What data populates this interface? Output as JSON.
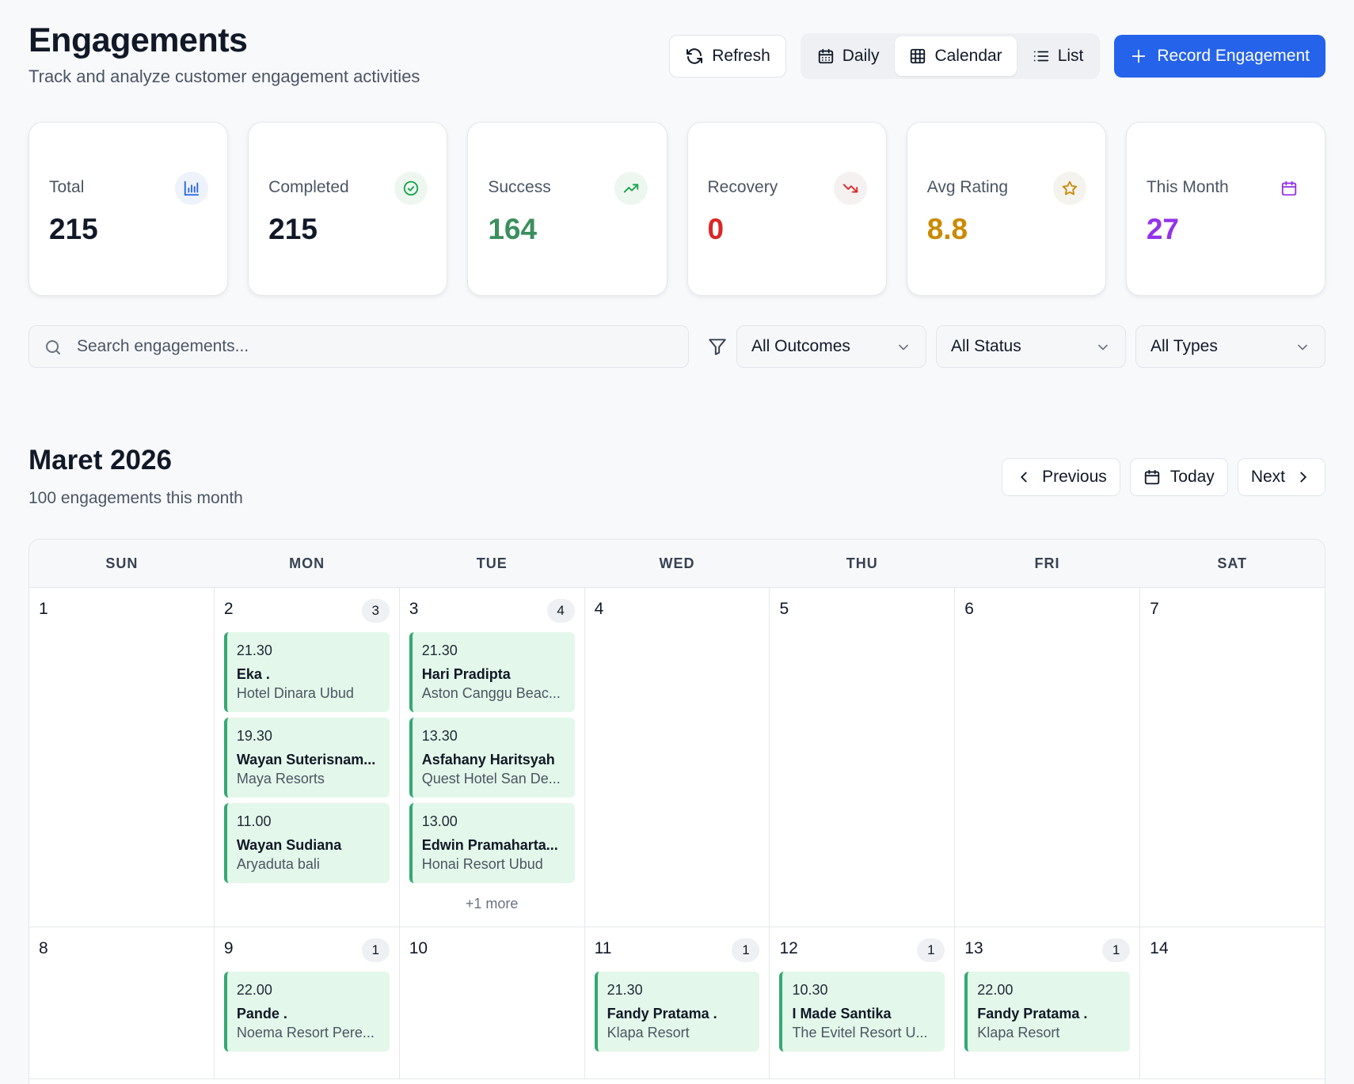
{
  "header": {
    "title": "Engagements",
    "subtitle": "Track and analyze customer engagement activities",
    "refresh_label": "Refresh",
    "views": [
      {
        "label": "Daily",
        "icon": "calendar-days-icon"
      },
      {
        "label": "Calendar",
        "icon": "grid-icon"
      },
      {
        "label": "List",
        "icon": "list-icon"
      }
    ],
    "active_view": "Calendar",
    "record_label": "Record Engagement"
  },
  "stats": [
    {
      "label": "Total",
      "value": "215",
      "icon": "bar-chart-icon",
      "color": "#111827",
      "icon_color": "#2563eb",
      "icon_bg": "#eef2fb"
    },
    {
      "label": "Completed",
      "value": "215",
      "icon": "check-circle-icon",
      "color": "#111827",
      "icon_color": "#16a34a",
      "icon_bg": "#edf7f0"
    },
    {
      "label": "Success",
      "value": "164",
      "icon": "trending-up-icon",
      "color": "#3b8f5e",
      "icon_color": "#16a34a",
      "icon_bg": "#edf7f0"
    },
    {
      "label": "Recovery",
      "value": "0",
      "icon": "trending-down-icon",
      "color": "#dc2626",
      "icon_color": "#dc2626",
      "icon_bg": "#f5f1f1"
    },
    {
      "label": "Avg Rating",
      "value": "8.8",
      "icon": "star-icon",
      "color": "#ca8a04",
      "icon_color": "#ca8a04",
      "icon_bg": "#f5f3ee"
    },
    {
      "label": "This Month",
      "value": "27",
      "icon": "calendar-icon",
      "color": "#9333ea",
      "icon_color": "#9333ea",
      "icon_bg": "#ffffff"
    }
  ],
  "filters": {
    "search_placeholder": "Search engagements...",
    "outcome": "All Outcomes",
    "status": "All Status",
    "type": "All Types"
  },
  "month": {
    "title": "Maret 2026",
    "subtitle": "100 engagements this month",
    "previous_label": "Previous",
    "today_label": "Today",
    "next_label": "Next"
  },
  "calendar": {
    "weekdays": [
      "SUN",
      "MON",
      "TUE",
      "WED",
      "THU",
      "FRI",
      "SAT"
    ],
    "weeks": [
      [
        {
          "day": "1",
          "count": "",
          "events": [],
          "more": ""
        },
        {
          "day": "2",
          "count": "3",
          "events": [
            {
              "time": "21.30",
              "name": "Eka .",
              "location": "Hotel Dinara Ubud"
            },
            {
              "time": "19.30",
              "name": "Wayan Suterisnam...",
              "location": "Maya Resorts"
            },
            {
              "time": "11.00",
              "name": "Wayan Sudiana",
              "location": "Aryaduta bali"
            }
          ],
          "more": ""
        },
        {
          "day": "3",
          "count": "4",
          "events": [
            {
              "time": "21.30",
              "name": "Hari Pradipta",
              "location": "Aston Canggu Beac..."
            },
            {
              "time": "13.30",
              "name": "Asfahany Haritsyah",
              "location": "Quest Hotel San De..."
            },
            {
              "time": "13.00",
              "name": "Edwin Pramaharta...",
              "location": "Honai Resort Ubud"
            }
          ],
          "more": "+1 more"
        },
        {
          "day": "4",
          "count": "",
          "events": [],
          "more": ""
        },
        {
          "day": "5",
          "count": "",
          "events": [],
          "more": ""
        },
        {
          "day": "6",
          "count": "",
          "events": [],
          "more": ""
        },
        {
          "day": "7",
          "count": "",
          "events": [],
          "more": ""
        }
      ],
      [
        {
          "day": "8",
          "count": "",
          "events": [],
          "more": ""
        },
        {
          "day": "9",
          "count": "1",
          "events": [
            {
              "time": "22.00",
              "name": "Pande .",
              "location": "Noema Resort Pere..."
            }
          ],
          "more": ""
        },
        {
          "day": "10",
          "count": "",
          "events": [],
          "more": ""
        },
        {
          "day": "11",
          "count": "1",
          "events": [
            {
              "time": "21.30",
              "name": "Fandy Pratama .",
              "location": "Klapa Resort"
            }
          ],
          "more": ""
        },
        {
          "day": "12",
          "count": "1",
          "events": [
            {
              "time": "10.30",
              "name": "I Made Santika",
              "location": "The Evitel Resort U..."
            }
          ],
          "more": ""
        },
        {
          "day": "13",
          "count": "1",
          "events": [
            {
              "time": "22.00",
              "name": "Fandy Pratama .",
              "location": "Klapa Resort"
            }
          ],
          "more": ""
        },
        {
          "day": "14",
          "count": "",
          "events": [],
          "more": ""
        }
      ]
    ]
  }
}
